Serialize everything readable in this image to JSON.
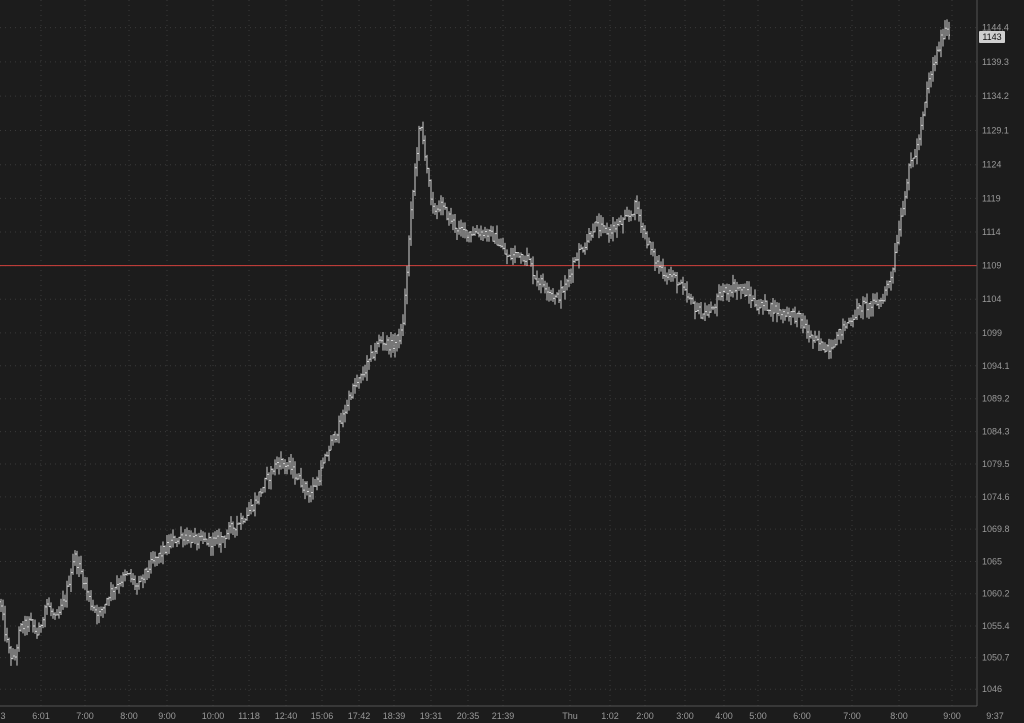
{
  "chart_data": {
    "type": "bar",
    "style": "ohlc",
    "title": "",
    "xlabel": "",
    "ylabel": "",
    "ylim": [
      1043.5,
      1148.5
    ],
    "grid": true,
    "grid_style": "dotted",
    "legend": "none",
    "y_ticks": [
      1046,
      1050.7,
      1055.4,
      1060.2,
      1065,
      1069.8,
      1074.6,
      1079.5,
      1084.3,
      1089.2,
      1094.1,
      1099,
      1104,
      1109,
      1114,
      1119,
      1124,
      1129.1,
      1134.2,
      1139.3,
      1144.4
    ],
    "x_ticks": [
      "3",
      "6:01",
      "7:00",
      "8:00",
      "9:00",
      "10:00",
      "11:18",
      "12:40",
      "15:06",
      "17:42",
      "18:39",
      "19:31",
      "20:35",
      "21:39",
      "Thu",
      "1:02",
      "2:00",
      "3:00",
      "4:00",
      "5:00",
      "6:00",
      "7:00",
      "8:00",
      "9:00",
      "9:37"
    ],
    "reference_line": {
      "value": 1109,
      "color": "#d0403c"
    },
    "last_price_label": "1143",
    "colors": {
      "background": "#1c1c1c",
      "bars": "#d2d2d2",
      "grid": "#3a3a3a",
      "axis_text": "#9a9a9a",
      "reference": "#d0403c"
    },
    "price_path": [
      [
        0,
        1059
      ],
      [
        8,
        1052
      ],
      [
        14,
        1050
      ],
      [
        20,
        1055
      ],
      [
        30,
        1056
      ],
      [
        38,
        1054
      ],
      [
        46,
        1059
      ],
      [
        56,
        1056
      ],
      [
        66,
        1060
      ],
      [
        74,
        1066
      ],
      [
        82,
        1063
      ],
      [
        90,
        1059
      ],
      [
        100,
        1057
      ],
      [
        108,
        1060
      ],
      [
        118,
        1062
      ],
      [
        128,
        1063
      ],
      [
        138,
        1061
      ],
      [
        148,
        1064
      ],
      [
        160,
        1066
      ],
      [
        172,
        1068
      ],
      [
        184,
        1069
      ],
      [
        196,
        1068
      ],
      [
        206,
        1068
      ],
      [
        218,
        1068
      ],
      [
        232,
        1070
      ],
      [
        246,
        1072
      ],
      [
        256,
        1074
      ],
      [
        266,
        1077
      ],
      [
        278,
        1080
      ],
      [
        290,
        1079
      ],
      [
        300,
        1077
      ],
      [
        310,
        1075
      ],
      [
        320,
        1078
      ],
      [
        332,
        1083
      ],
      [
        342,
        1086
      ],
      [
        350,
        1090
      ],
      [
        360,
        1092
      ],
      [
        370,
        1095
      ],
      [
        380,
        1098
      ],
      [
        392,
        1097
      ],
      [
        402,
        1099
      ],
      [
        406,
        1106
      ],
      [
        410,
        1115
      ],
      [
        416,
        1125
      ],
      [
        420,
        1130
      ],
      [
        426,
        1125
      ],
      [
        432,
        1117
      ],
      [
        440,
        1118
      ],
      [
        450,
        1116
      ],
      [
        460,
        1114
      ],
      [
        472,
        1114
      ],
      [
        484,
        1114
      ],
      [
        496,
        1113
      ],
      [
        508,
        1110
      ],
      [
        518,
        1111
      ],
      [
        528,
        1110
      ],
      [
        536,
        1107
      ],
      [
        546,
        1106
      ],
      [
        556,
        1104
      ],
      [
        566,
        1106
      ],
      [
        574,
        1110
      ],
      [
        584,
        1112
      ],
      [
        594,
        1115
      ],
      [
        606,
        1114
      ],
      [
        618,
        1115
      ],
      [
        628,
        1116
      ],
      [
        636,
        1118
      ],
      [
        644,
        1114
      ],
      [
        654,
        1110
      ],
      [
        664,
        1108
      ],
      [
        676,
        1107
      ],
      [
        688,
        1104
      ],
      [
        700,
        1102
      ],
      [
        710,
        1102
      ],
      [
        722,
        1105
      ],
      [
        734,
        1106
      ],
      [
        746,
        1105
      ],
      [
        758,
        1103
      ],
      [
        770,
        1103
      ],
      [
        780,
        1102
      ],
      [
        790,
        1102
      ],
      [
        800,
        1101
      ],
      [
        812,
        1098
      ],
      [
        822,
        1097
      ],
      [
        830,
        1097
      ],
      [
        840,
        1099
      ],
      [
        850,
        1101
      ],
      [
        862,
        1103
      ],
      [
        872,
        1103
      ],
      [
        882,
        1104
      ],
      [
        892,
        1108
      ],
      [
        898,
        1114
      ],
      [
        904,
        1119
      ],
      [
        910,
        1124
      ],
      [
        916,
        1126
      ],
      [
        922,
        1130
      ],
      [
        928,
        1136
      ],
      [
        934,
        1139
      ],
      [
        940,
        1142
      ],
      [
        946,
        1145
      ],
      [
        950,
        1143
      ]
    ]
  }
}
